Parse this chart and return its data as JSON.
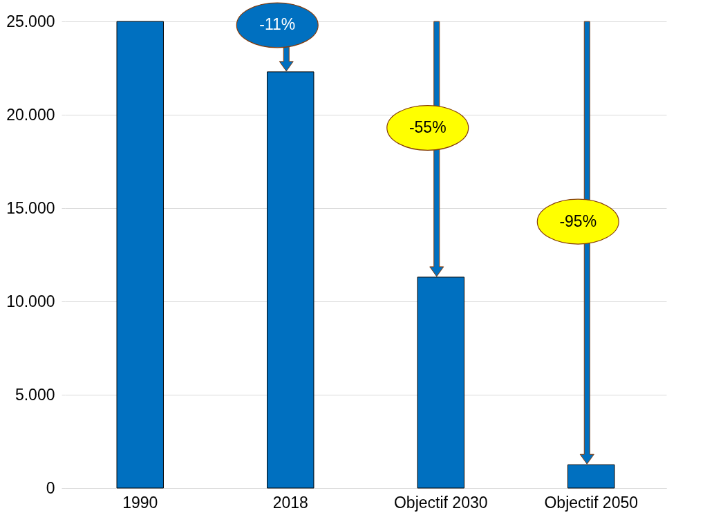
{
  "chart_data": {
    "type": "bar",
    "categories": [
      "1990",
      "2018",
      "Objectif 2030",
      "Objectif 2050"
    ],
    "values": [
      25000,
      22300,
      11300,
      1250
    ],
    "color": "#0070c0",
    "ylim": [
      0,
      25000
    ],
    "yticks": [
      {
        "value": 0,
        "label": "0"
      },
      {
        "value": 5000,
        "label": "5.000"
      },
      {
        "value": 10000,
        "label": "10.000"
      },
      {
        "value": 15000,
        "label": "15.000"
      },
      {
        "value": 20000,
        "label": "20.000"
      },
      {
        "value": 25000,
        "label": "25.000"
      }
    ],
    "grid": "y",
    "annotations": [
      "-11%",
      "-55%",
      "-95%"
    ]
  }
}
